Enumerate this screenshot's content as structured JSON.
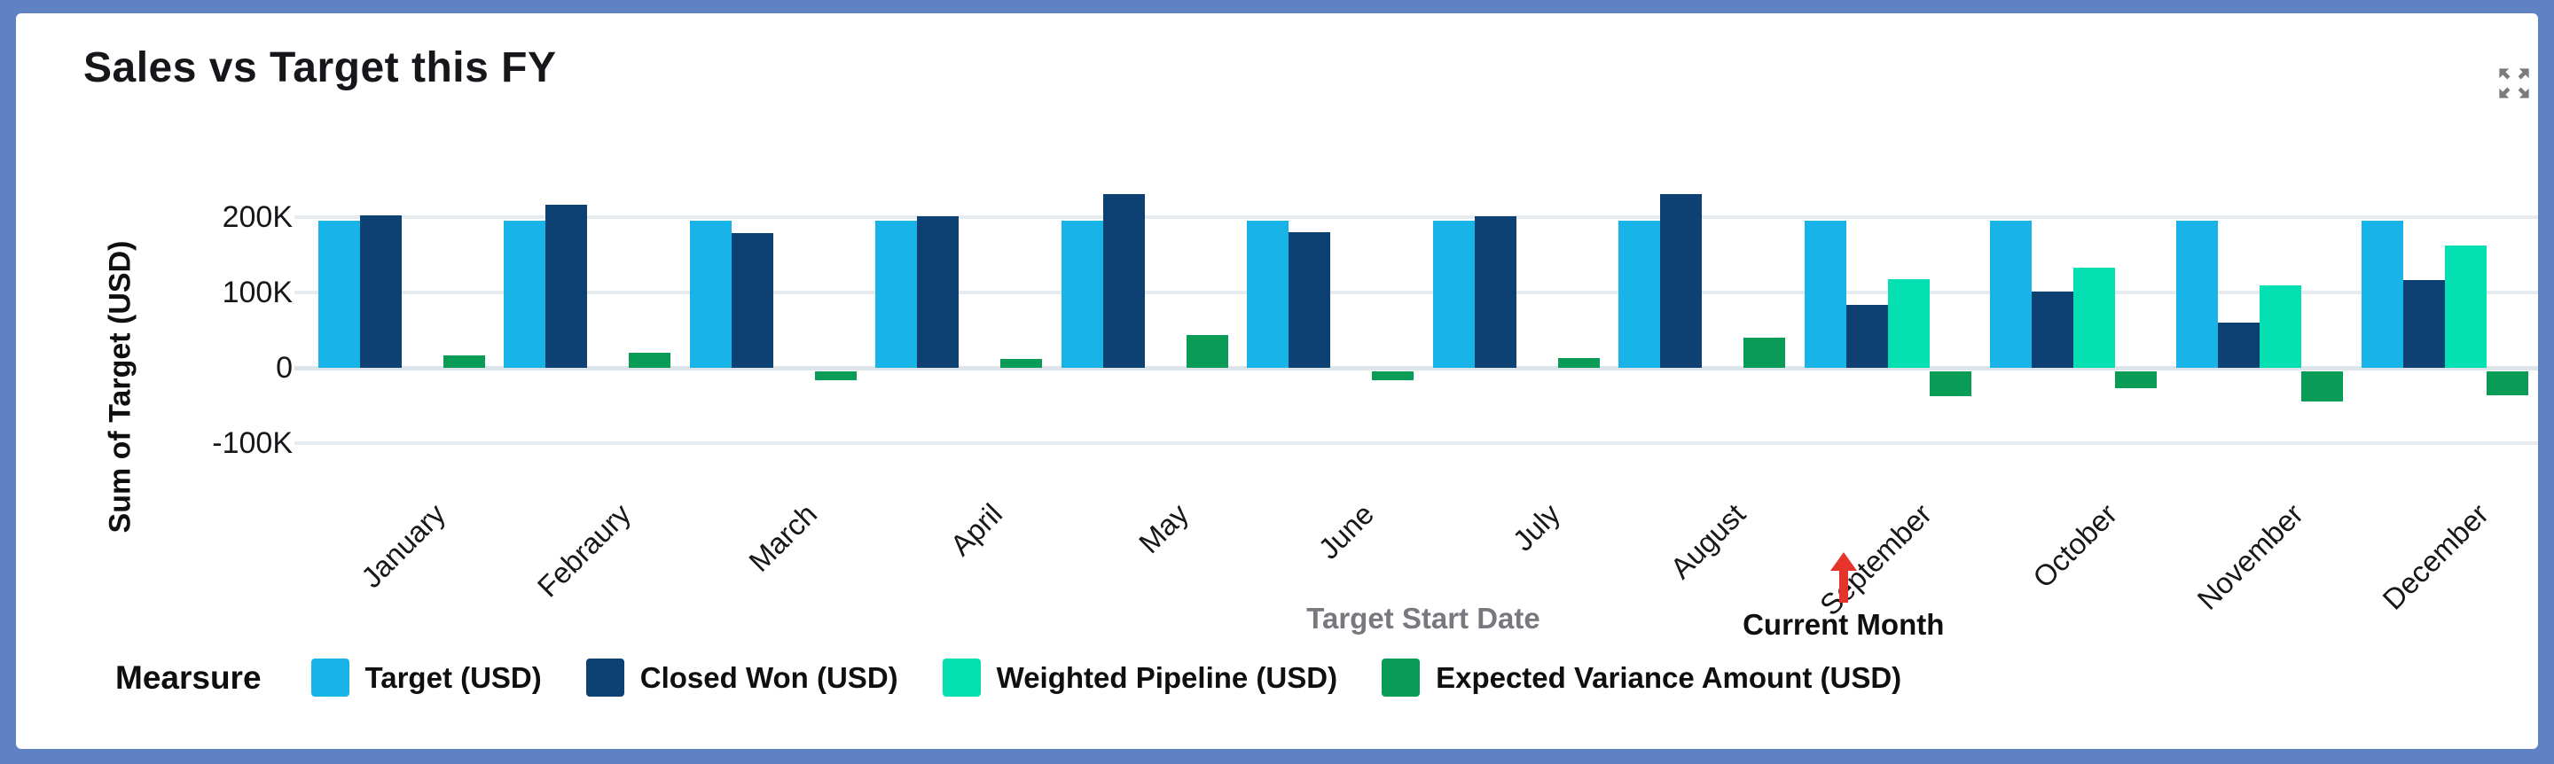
{
  "widget": {
    "title": "Sales vs Target this FY",
    "frame_color": "#5E82C4",
    "expand_icon_color": "#7B7B7B"
  },
  "chart_data": {
    "type": "bar",
    "title": "Sales vs Target this FY",
    "xlabel": "Target Start Date",
    "ylabel": "Sum of Target (USD)",
    "categories": [
      "January",
      "Febraury",
      "March",
      "April",
      "May",
      "June",
      "July",
      "August",
      "September",
      "October",
      "November",
      "December"
    ],
    "series": [
      {
        "name": "Target (USD)",
        "color": "#18B4E8",
        "values": [
          195000,
          195000,
          195000,
          195000,
          195000,
          195000,
          195000,
          195000,
          195000,
          195000,
          195000,
          195000
        ]
      },
      {
        "name": "Closed Won (USD)",
        "color": "#0D4073",
        "values": [
          202000,
          216000,
          179000,
          201000,
          231000,
          180000,
          201000,
          231000,
          84000,
          101000,
          60000,
          117000
        ]
      },
      {
        "name": "Weighted Pipeline (USD)",
        "color": "#04E0B2",
        "values": [
          0,
          0,
          0,
          0,
          0,
          0,
          0,
          0,
          118000,
          133000,
          110000,
          162000
        ]
      },
      {
        "name": "Expected Variance Amount (USD)",
        "color": "#089C57",
        "values": [
          16000,
          20000,
          -17000,
          12000,
          43000,
          -17000,
          13000,
          40000,
          -38000,
          -27000,
          -45000,
          -36000
        ]
      }
    ],
    "y_ticks": [
      "200K",
      "100K",
      "0",
      "-100K"
    ],
    "y_tick_values": [
      200000,
      100000,
      0,
      -100000
    ],
    "ylim": [
      -153000,
      253000
    ],
    "grid": true,
    "legend_title": "Mearsure",
    "legend_position": "bottom",
    "annotation": {
      "label": "Current Month",
      "target_category": "September",
      "arrow_color": "#E5342B"
    }
  }
}
